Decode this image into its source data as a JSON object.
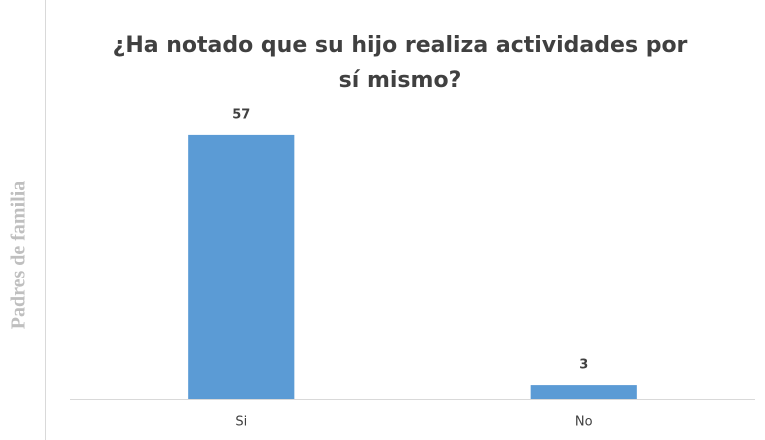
{
  "chart_data": {
    "type": "bar",
    "title": "¿Ha notado que su hijo realiza actividades por sí mismo?",
    "y_label": "Padres de familia",
    "categories": [
      "Si",
      "No"
    ],
    "values": [
      57,
      3
    ],
    "color": "#5b9bd5",
    "ylim": [
      0,
      60
    ]
  }
}
